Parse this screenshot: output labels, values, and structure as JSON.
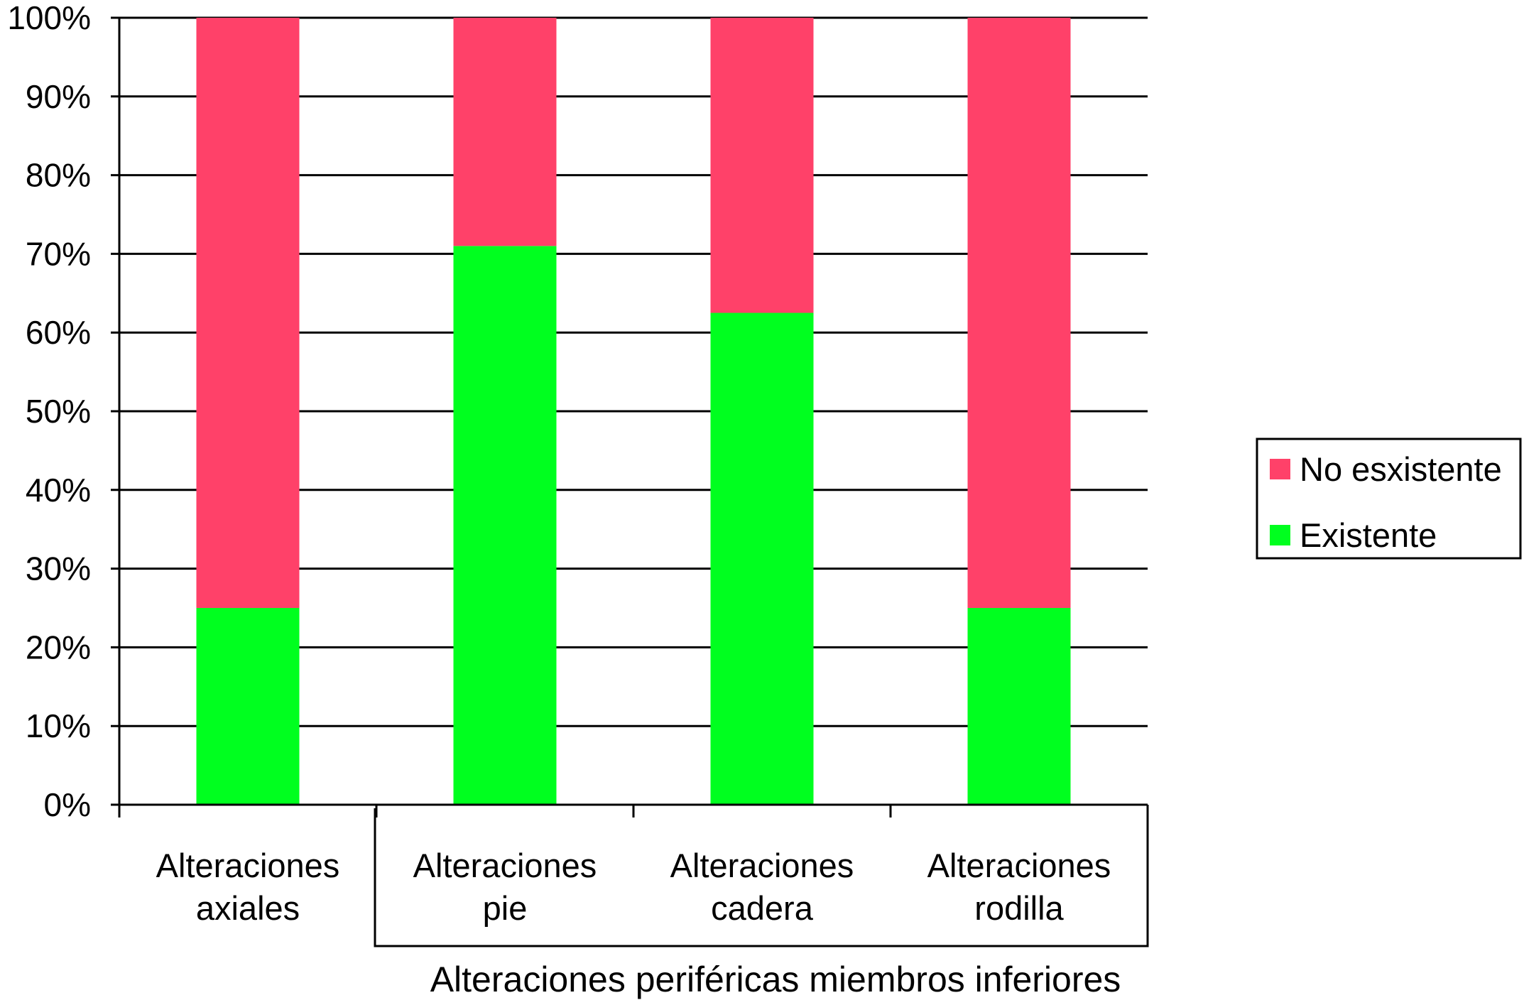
{
  "chart_data": {
    "type": "bar",
    "stacked": true,
    "percent": true,
    "categories": [
      [
        "Alteraciones",
        "axiales"
      ],
      [
        "Alteraciones",
        "pie"
      ],
      [
        "Alteraciones",
        "cadera"
      ],
      [
        "Alteraciones",
        "rodilla"
      ]
    ],
    "category_group": {
      "label": "Alteraciones periféricas miembros inferiores",
      "spans_categories": [
        1,
        3
      ]
    },
    "series": [
      {
        "name": "Existente",
        "values": [
          25,
          71,
          62.5,
          25
        ],
        "color": "#00ff1f"
      },
      {
        "name": "No esxistente",
        "values": [
          75,
          29,
          37.5,
          75
        ],
        "color": "#ff4169"
      }
    ],
    "legend_order": [
      "No esxistente",
      "Existente"
    ],
    "y_ticks": [
      "0%",
      "10%",
      "20%",
      "30%",
      "40%",
      "50%",
      "60%",
      "70%",
      "80%",
      "90%",
      "100%"
    ],
    "ylim": [
      0,
      100
    ],
    "grid": true,
    "legend_position": "right"
  }
}
